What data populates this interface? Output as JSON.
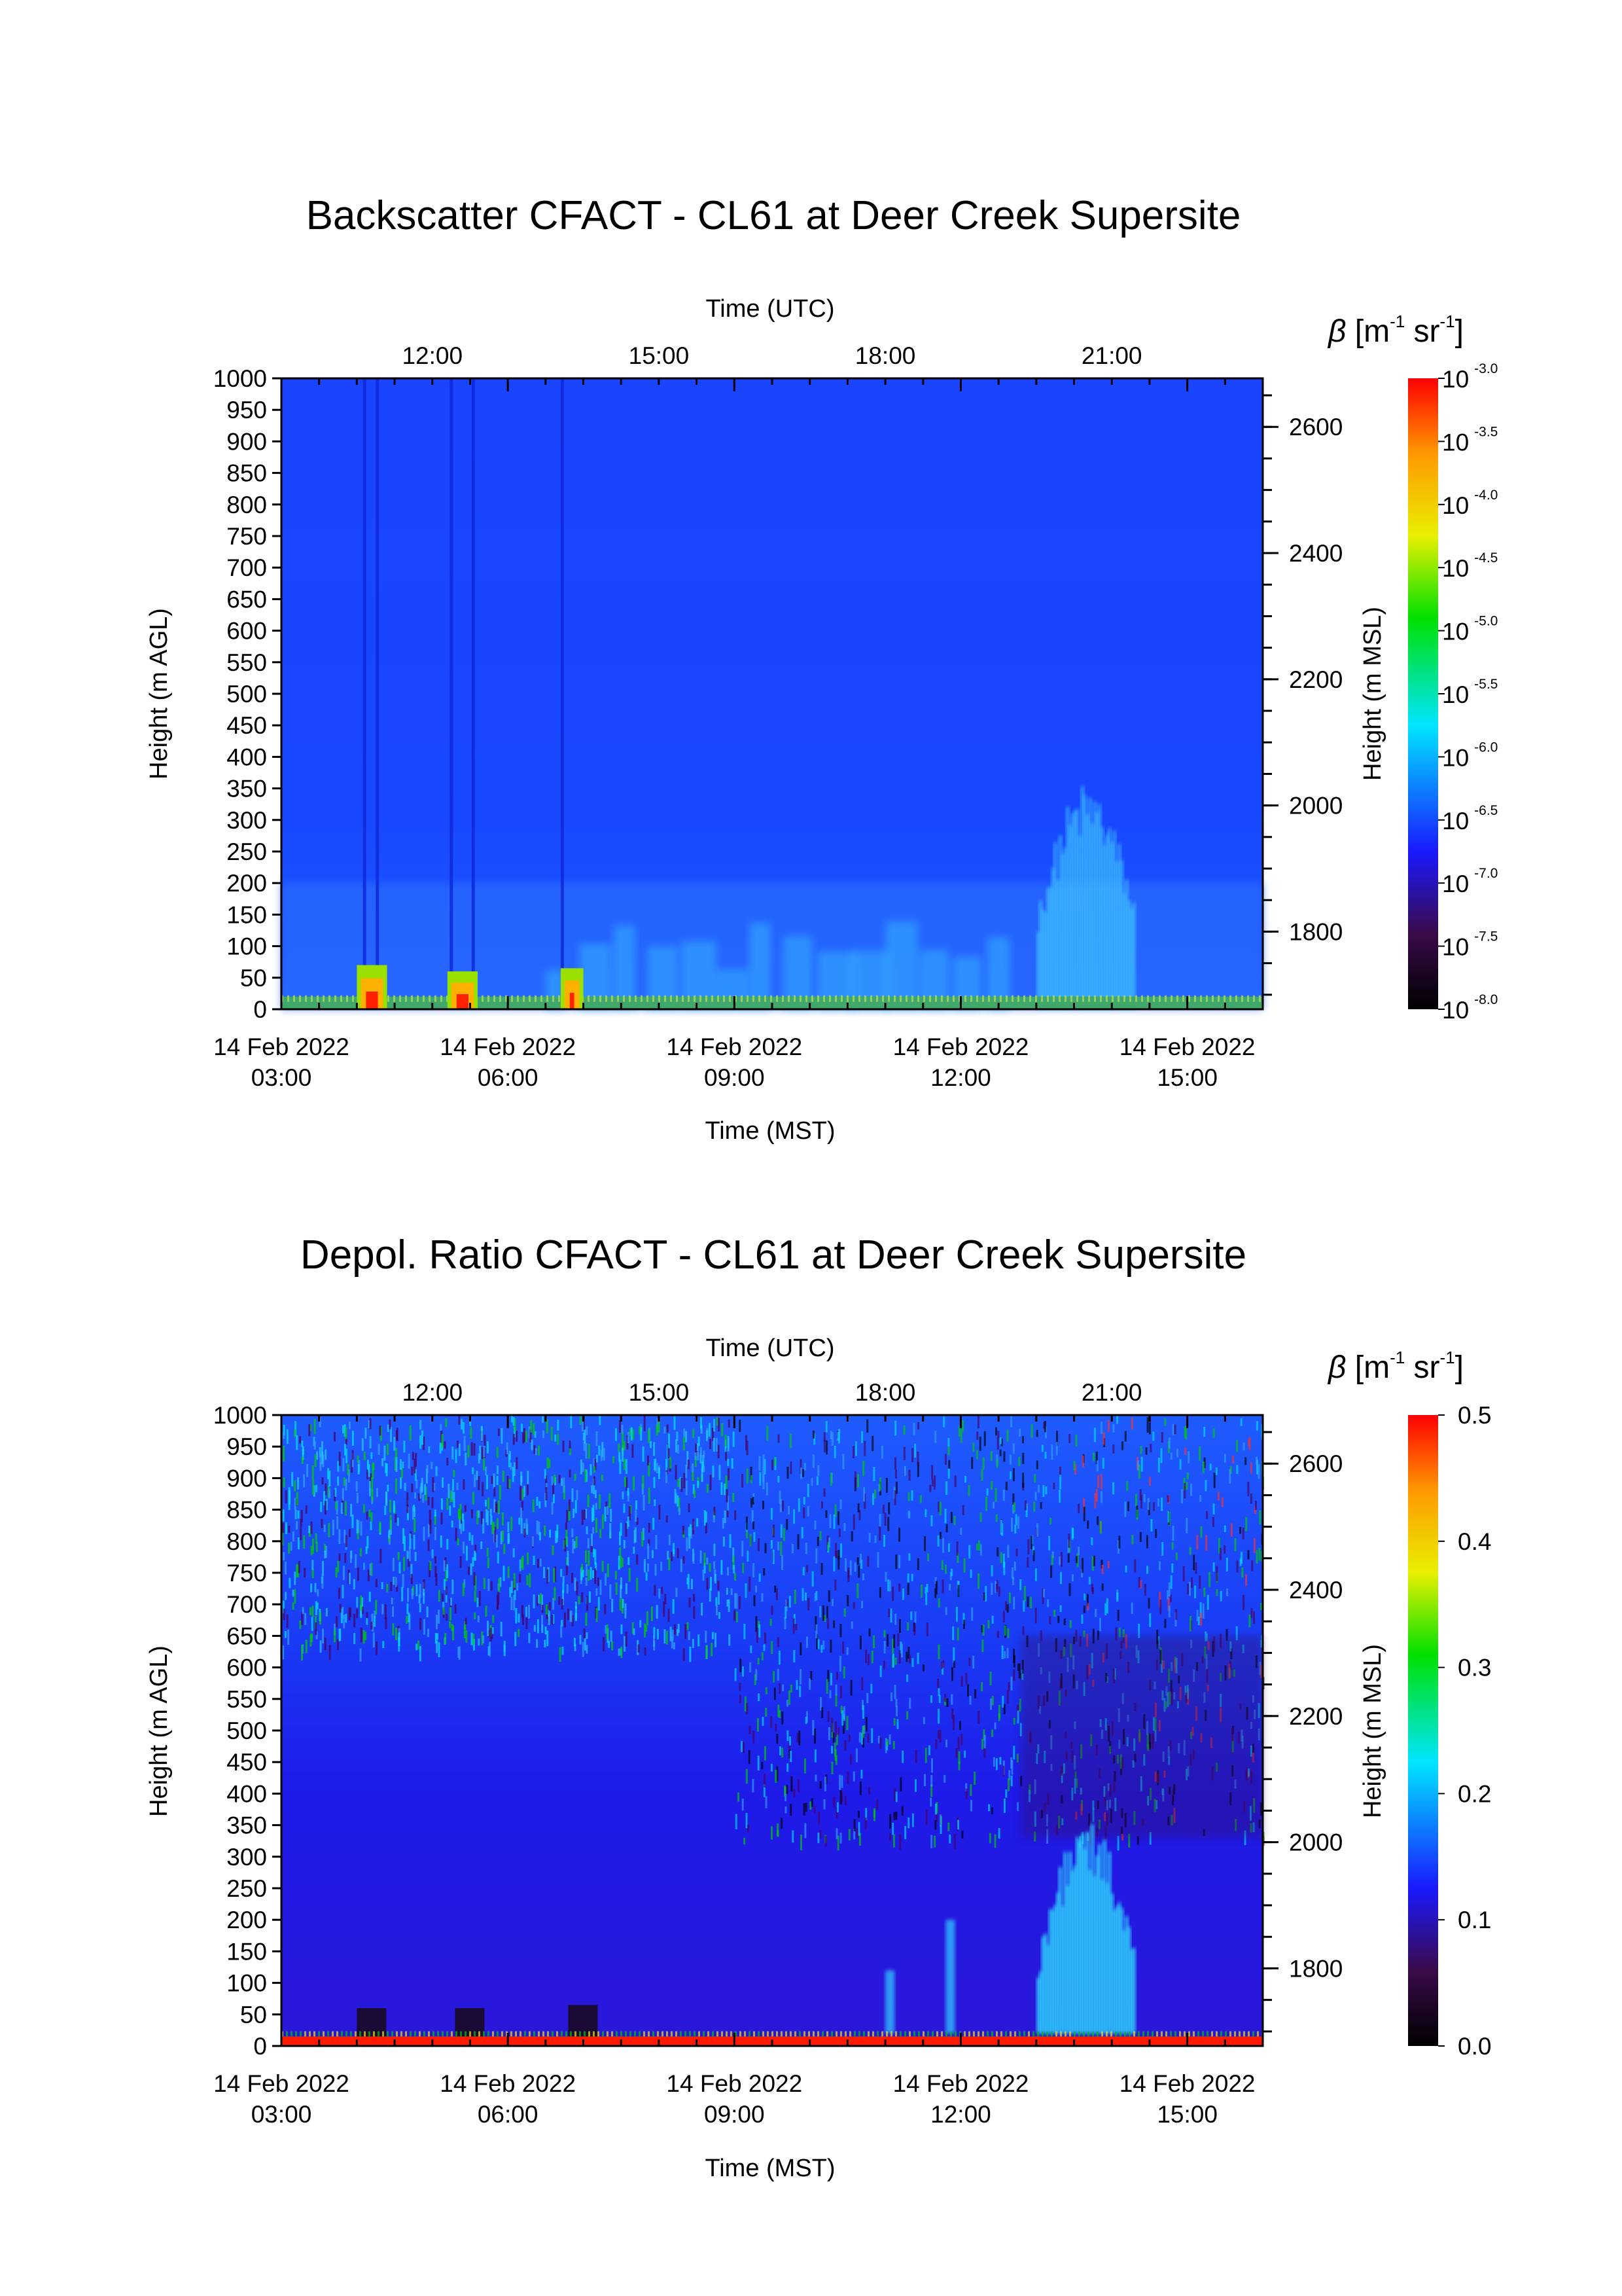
{
  "colors": {
    "colormap": [
      "#000000",
      "#3a0a4a",
      "#1a1aff",
      "#00e5ff",
      "#00e000",
      "#e8f000",
      "#ff9900",
      "#ff0000"
    ],
    "plot_background": "#1a40ff"
  },
  "chart_data": [
    {
      "type": "heatmap",
      "title": "Backscatter CFACT - CL61 at Deer Creek Supersite",
      "xlabel_top": "Time (UTC)",
      "xlabel": "Time (MST)",
      "ylabel": "Height (m AGL)",
      "ylabel_right": "Height (m MSL)",
      "x_top_ticks": [
        "12:00",
        "15:00",
        "18:00",
        "21:00"
      ],
      "x_ticks": [
        {
          "date": "14 Feb 2022",
          "time": "03:00"
        },
        {
          "date": "14 Feb 2022",
          "time": "06:00"
        },
        {
          "date": "14 Feb 2022",
          "time": "09:00"
        },
        {
          "date": "14 Feb 2022",
          "time": "12:00"
        },
        {
          "date": "14 Feb 2022",
          "time": "15:00"
        }
      ],
      "xlim_mst_hours": [
        3.0,
        16.0
      ],
      "y_ticks": [
        0,
        50,
        100,
        150,
        200,
        250,
        300,
        350,
        400,
        450,
        500,
        550,
        600,
        650,
        700,
        750,
        800,
        850,
        900,
        950,
        1000
      ],
      "ylim": [
        0,
        1000
      ],
      "y_right_ticks": [
        1800,
        2000,
        2200,
        2400,
        2600
      ],
      "colorbar": {
        "label_symbol": "β",
        "label_units": {
          "open": " [m",
          "exp1": "-1",
          "mid": " sr",
          "exp2": "-1",
          "close": "]"
        },
        "scale": "log",
        "tick_base": "10",
        "tick_exponents": [
          "-3.0",
          "-3.5",
          "-4.0",
          "-4.5",
          "-5.0",
          "-5.5",
          "-6.0",
          "-6.5",
          "-7.0",
          "-7.5",
          "-8.0"
        ],
        "range_log10": [
          -8.0,
          -3.0
        ]
      },
      "features": {
        "background_log10_beta": -6.8,
        "surface_layer_log10_beta": -4.8,
        "surface_layer_top_m": 20,
        "vertical_dropout_stripes_mst_hours": [
          4.08,
          4.25,
          5.23,
          5.52,
          6.7
        ],
        "low_aerosol_bursts": [
          {
            "start_mst_hour": 4.0,
            "end_mst_hour": 4.4,
            "top_m": 70,
            "peak_log10_beta": -3.2
          },
          {
            "start_mst_hour": 5.2,
            "end_mst_hour": 5.6,
            "top_m": 60,
            "peak_log10_beta": -3.8
          },
          {
            "start_mst_hour": 6.7,
            "end_mst_hour": 7.0,
            "top_m": 65,
            "peak_log10_beta": -3.3
          }
        ],
        "elevated_plume": {
          "start_mst_hour": 13.0,
          "end_mst_hour": 14.3,
          "top_m": 330,
          "log10_beta": -6.1
        }
      }
    },
    {
      "type": "heatmap",
      "title": "Depol. Ratio CFACT - CL61 at Deer Creek Supersite",
      "xlabel_top": "Time (UTC)",
      "xlabel": "Time (MST)",
      "ylabel": "Height (m AGL)",
      "ylabel_right": "Height (m MSL)",
      "x_top_ticks": [
        "12:00",
        "15:00",
        "18:00",
        "21:00"
      ],
      "x_ticks": [
        {
          "date": "14 Feb 2022",
          "time": "03:00"
        },
        {
          "date": "14 Feb 2022",
          "time": "06:00"
        },
        {
          "date": "14 Feb 2022",
          "time": "09:00"
        },
        {
          "date": "14 Feb 2022",
          "time": "12:00"
        },
        {
          "date": "14 Feb 2022",
          "time": "15:00"
        }
      ],
      "xlim_mst_hours": [
        3.0,
        16.0
      ],
      "y_ticks": [
        0,
        50,
        100,
        150,
        200,
        250,
        300,
        350,
        400,
        450,
        500,
        550,
        600,
        650,
        700,
        750,
        800,
        850,
        900,
        950,
        1000
      ],
      "ylim": [
        0,
        1000
      ],
      "y_right_ticks": [
        1800,
        2000,
        2200,
        2400,
        2600
      ],
      "colorbar": {
        "label_symbol": "β",
        "label_units": {
          "open": " [m",
          "exp1": "-1",
          "mid": " sr",
          "exp2": "-1",
          "close": "]"
        },
        "scale": "linear",
        "ticks": [
          "0.0",
          "0.1",
          "0.2",
          "0.3",
          "0.4",
          "0.5"
        ],
        "range": [
          0.0,
          0.5
        ]
      },
      "features": {
        "background_depol_ratio": 0.08,
        "noisy_region_above_m": 600,
        "surface_layer_depol_ratio": 0.5,
        "surface_layer_top_m": 15,
        "elevated_plume": {
          "start_mst_hour": 13.0,
          "end_mst_hour": 14.3,
          "top_m": 330,
          "depol_ratio": 0.2
        }
      }
    }
  ]
}
